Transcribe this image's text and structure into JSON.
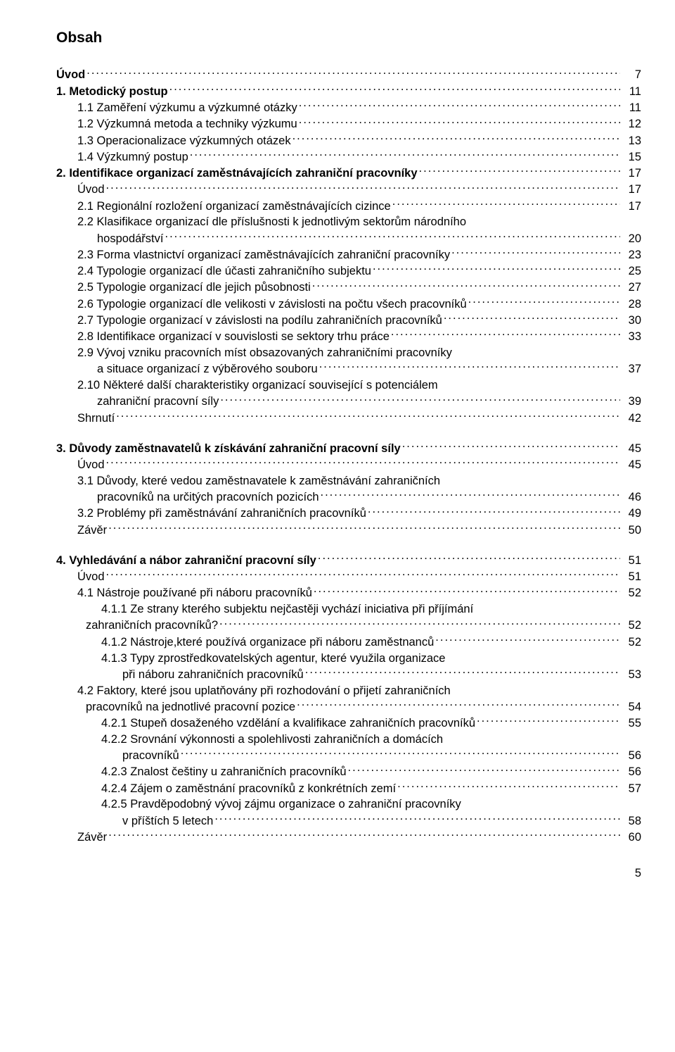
{
  "title": "Obsah",
  "page_number": "5",
  "entries": [
    {
      "label": "Úvod",
      "page": "7",
      "bold": true,
      "indent": 0
    },
    {
      "label": "1. Metodický postup",
      "page": "11",
      "bold": true,
      "indent": 0
    },
    {
      "label": "1.1 Zaměření výzkumu a výzkumné otázky",
      "page": "11",
      "bold": false,
      "indent": 1
    },
    {
      "label": "1.2 Výzkumná metoda a techniky výzkumu",
      "page": "12",
      "bold": false,
      "indent": 1
    },
    {
      "label": "1.3 Operacionalizace výzkumných otázek",
      "page": "13",
      "bold": false,
      "indent": 1
    },
    {
      "label": "1.4 Výzkumný postup",
      "page": "15",
      "bold": false,
      "indent": 1
    },
    {
      "label": "2. Identifikace organizací zaměstnávajících zahraniční pracovníky",
      "page": "17",
      "bold": true,
      "indent": 0
    },
    {
      "label": "Úvod",
      "page": "17",
      "bold": false,
      "indent": 1
    },
    {
      "label": "2.1  Regionální rozložení organizací zaměstnávajících cizince",
      "page": "17",
      "bold": false,
      "indent": 1
    },
    {
      "label_lines": [
        "2.2  Klasifikace organizací dle příslušnosti k jednotlivým sektorům národního",
        "hospodářství"
      ],
      "page": "20",
      "bold": false,
      "indent": 1,
      "cont_indent": "indent-cont-a"
    },
    {
      "label": "2.3  Forma vlastnictví organizací zaměstnávajících zahraniční pracovníky",
      "page": "23",
      "bold": false,
      "indent": 1
    },
    {
      "label": "2.4  Typologie organizací dle účasti zahraničního subjektu",
      "page": "25",
      "bold": false,
      "indent": 1
    },
    {
      "label": "2.5  Typologie organizací dle jejich působnosti",
      "page": "27",
      "bold": false,
      "indent": 1
    },
    {
      "label": "2.6  Typologie organizací dle velikosti v závislosti na počtu všech pracovníků",
      "page": "28",
      "bold": false,
      "indent": 1
    },
    {
      "label": "2.7  Typologie organizací v závislosti na podílu zahraničních pracovníků",
      "page": "30",
      "bold": false,
      "indent": 1
    },
    {
      "label": "2.8  Identifikace organizací v souvislosti se sektory trhu práce",
      "page": "33",
      "bold": false,
      "indent": 1
    },
    {
      "label_lines": [
        "2.9  Vývoj vzniku pracovních míst obsazovaných zahraničními pracovníky",
        "a situace organizací z výběrového souboru"
      ],
      "page": "37",
      "bold": false,
      "indent": 1,
      "cont_indent": "indent-cont-a"
    },
    {
      "label_lines": [
        "2.10 Některé další charakteristiky organizací související s potenciálem",
        "zahraniční  pracovní síly"
      ],
      "page": "39",
      "bold": false,
      "indent": 1,
      "cont_indent": "indent-cont-a"
    },
    {
      "label": "Shrnutí",
      "page": "42",
      "bold": false,
      "indent": 1
    },
    {
      "gap": true
    },
    {
      "label": "3. Důvody zaměstnavatelů k získávání zahraniční pracovní síly",
      "page": "45",
      "bold": true,
      "indent": 0
    },
    {
      "label": "Úvod",
      "page": "45",
      "bold": false,
      "indent": 1
    },
    {
      "label_lines": [
        "3.1  Důvody, které vedou zaměstnavatele k zaměstnávání zahraničních",
        "pracovníků na určitých pracovních pozicích"
      ],
      "page": "46",
      "bold": false,
      "indent": 1,
      "cont_indent": "indent-cont-a"
    },
    {
      "label": "3.2  Problémy při zaměstnávání zahraničních pracovníků",
      "page": "49",
      "bold": false,
      "indent": 1
    },
    {
      "label": "Závěr",
      "page": "50",
      "bold": false,
      "indent": 1
    },
    {
      "gap": true
    },
    {
      "label": "4. Vyhledávání a nábor zahraniční pracovní síly",
      "page": "51",
      "bold": true,
      "indent": 0
    },
    {
      "label": "Úvod",
      "page": "51",
      "bold": false,
      "indent": 1
    },
    {
      "label": "4.1 Nástroje používané při náboru pracovníků",
      "page": "52",
      "bold": false,
      "indent": 1
    },
    {
      "label_lines": [
        "4.1.1 Ze strany kterého subjektu nejčastěji vychází iniciativa při příjímání",
        "zahraničních pracovníků?"
      ],
      "page": "52",
      "bold": false,
      "indent": 2,
      "cont_indent": "indent-cont-b"
    },
    {
      "label": "4.1.2 Nástroje,které používá organizace při náboru zaměstnanců",
      "page": "52",
      "bold": false,
      "indent": 2
    },
    {
      "label_lines": [
        "4.1.3 Typy zprostředkovatelských agentur, které využila organizace",
        "při náboru zahraničních pracovníků"
      ],
      "page": "53",
      "bold": false,
      "indent": 2,
      "cont_indent": "indent-cont"
    },
    {
      "label_lines": [
        "4.2 Faktory, které jsou uplatňovány při rozhodování o přijetí zahraničních",
        "pracovníků na jednotlivé pracovní pozice"
      ],
      "page": "54",
      "bold": false,
      "indent": 1,
      "cont_indent": "indent-cont-b"
    },
    {
      "label": "4.2.1 Stupeň dosaženého vzdělání a kvalifikace zahraničních pracovníků",
      "page": "55",
      "bold": false,
      "indent": 2
    },
    {
      "label_lines": [
        "4.2.2 Srovnání výkonnosti a spolehlivosti zahraničních a domácích",
        "pracovníků"
      ],
      "page": "56",
      "bold": false,
      "indent": 2,
      "cont_indent": "indent-cont"
    },
    {
      "label": "4.2.3 Znalost češtiny u zahraničních pracovníků",
      "page": "56",
      "bold": false,
      "indent": 2
    },
    {
      "label": "4.2.4 Zájem o zaměstnání pracovníků z konkrétních zemí",
      "page": "57",
      "bold": false,
      "indent": 2
    },
    {
      "label_lines": [
        "4.2.5 Pravděpodobný vývoj zájmu organizace o zahraniční pracovníky",
        "v příštích 5 letech"
      ],
      "page": "58",
      "bold": false,
      "indent": 2,
      "cont_indent": "indent-cont"
    },
    {
      "label": "Závěr",
      "page": "60",
      "bold": false,
      "indent": 1
    }
  ]
}
